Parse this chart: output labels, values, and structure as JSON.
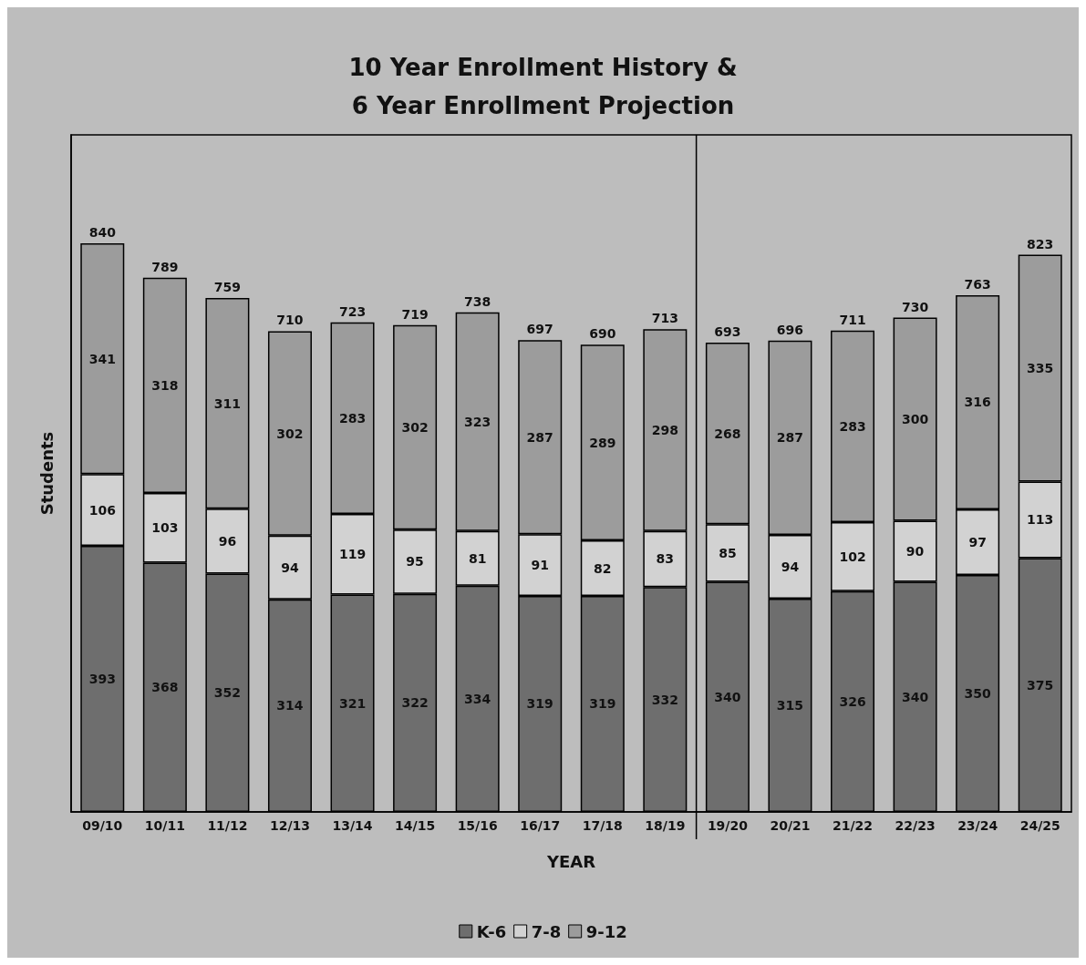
{
  "chart_data": {
    "type": "bar",
    "title": "10 Year Enrollment History &\n6 Year Enrollment Projection",
    "xlabel": "YEAR",
    "ylabel": "Students",
    "categories": [
      "09/10",
      "10/11",
      "11/12",
      "12/13",
      "13/14",
      "14/15",
      "15/16",
      "16/17",
      "17/18",
      "18/19",
      "19/20",
      "20/21",
      "21/22",
      "22/23",
      "23/24",
      "24/25"
    ],
    "stacked": true,
    "data_labels": true,
    "legend": "bottom",
    "grid": false,
    "ylim": [
      0,
      1000
    ],
    "tick_labels": "x",
    "series": [
      {
        "name": "K-6",
        "color": "#6e6e6e",
        "values": [
          393,
          368,
          352,
          314,
          321,
          322,
          334,
          319,
          319,
          332,
          340,
          315,
          326,
          340,
          350,
          375
        ]
      },
      {
        "name": "7-8",
        "color": "#d2d2d2",
        "values": [
          106,
          103,
          96,
          94,
          119,
          95,
          81,
          91,
          82,
          83,
          85,
          94,
          102,
          90,
          97,
          113
        ]
      },
      {
        "name": "9-12",
        "color": "#9c9c9c",
        "values": [
          341,
          318,
          311,
          302,
          283,
          302,
          323,
          287,
          289,
          298,
          268,
          287,
          283,
          300,
          316,
          335
        ]
      }
    ],
    "totals": [
      "840",
      "789",
      "759",
      "710",
      "723",
      "719",
      "738",
      "697",
      "690",
      "713",
      "693",
      "696",
      "711",
      "730",
      "763",
      "823"
    ]
  }
}
